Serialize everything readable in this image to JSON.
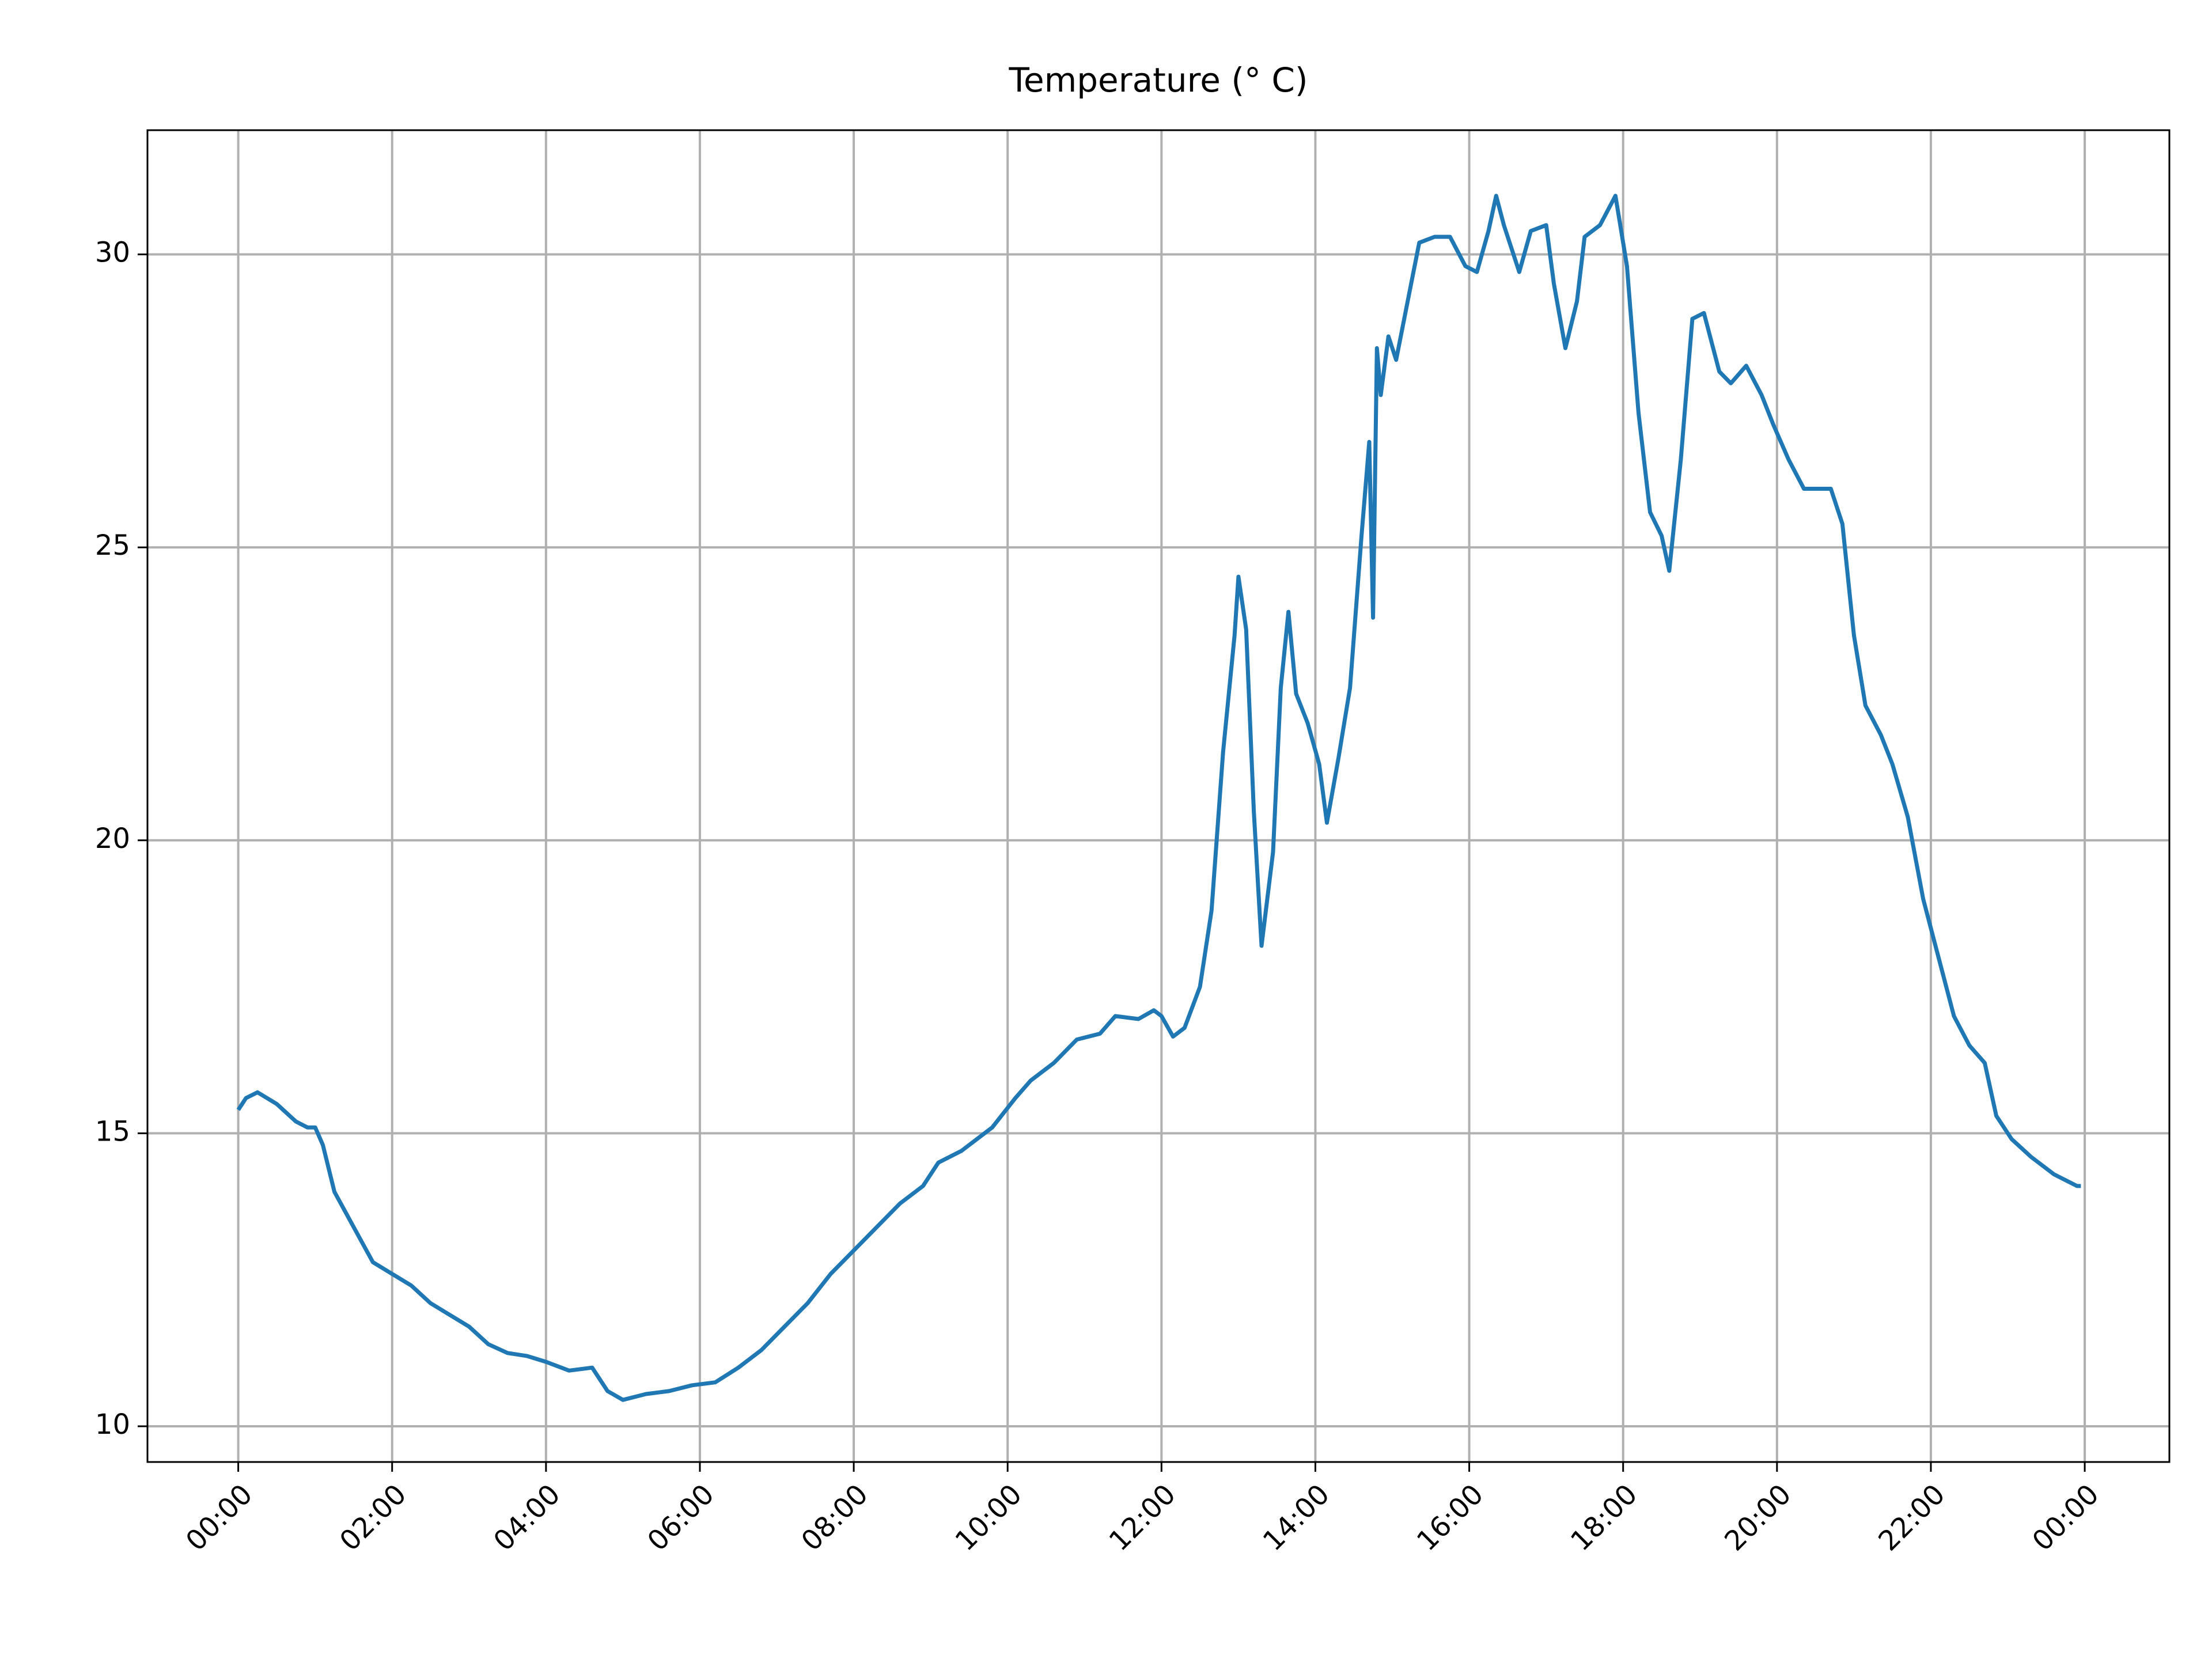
{
  "chart_data": {
    "type": "line",
    "title": "Temperature (° C)",
    "x": [
      0.0,
      0.1,
      0.25,
      0.5,
      0.75,
      0.9,
      1.0,
      1.1,
      1.25,
      1.5,
      1.75,
      2.0,
      2.25,
      2.5,
      2.75,
      3.0,
      3.25,
      3.5,
      3.75,
      4.0,
      4.3,
      4.6,
      4.8,
      5.0,
      5.3,
      5.6,
      5.9,
      6.2,
      6.5,
      6.8,
      7.1,
      7.4,
      7.7,
      8.0,
      8.3,
      8.6,
      8.9,
      9.1,
      9.4,
      9.8,
      10.1,
      10.3,
      10.6,
      10.9,
      11.2,
      11.4,
      11.7,
      11.9,
      12.0,
      12.15,
      12.3,
      12.5,
      12.65,
      12.8,
      12.95,
      13.0,
      13.1,
      13.2,
      13.3,
      13.45,
      13.55,
      13.65,
      13.75,
      13.9,
      14.05,
      14.15,
      14.3,
      14.45,
      14.6,
      14.7,
      14.75,
      14.8,
      14.85,
      14.95,
      15.05,
      15.2,
      15.35,
      15.55,
      15.75,
      15.95,
      16.1,
      16.25,
      16.35,
      16.45,
      16.65,
      16.8,
      17.0,
      17.1,
      17.25,
      17.4,
      17.5,
      17.7,
      17.9,
      18.05,
      18.2,
      18.35,
      18.5,
      18.6,
      18.75,
      18.9,
      19.05,
      19.25,
      19.4,
      19.6,
      19.8,
      19.95,
      20.15,
      20.35,
      20.55,
      20.7,
      20.85,
      21.0,
      21.15,
      21.35,
      21.5,
      21.7,
      21.9,
      22.1,
      22.3,
      22.5,
      22.7,
      22.85,
      23.05,
      23.3,
      23.6,
      23.9,
      23.95
    ],
    "values": [
      15.4,
      15.6,
      15.7,
      15.5,
      15.2,
      15.1,
      15.1,
      14.8,
      14.0,
      13.4,
      12.8,
      12.6,
      12.4,
      12.1,
      11.9,
      11.7,
      11.4,
      11.25,
      11.2,
      11.1,
      10.95,
      11.0,
      10.6,
      10.45,
      10.55,
      10.6,
      10.7,
      10.75,
      11.0,
      11.3,
      11.7,
      12.1,
      12.6,
      13.0,
      13.4,
      13.8,
      14.1,
      14.5,
      14.7,
      15.1,
      15.6,
      15.9,
      16.2,
      16.6,
      16.7,
      17.0,
      16.95,
      17.1,
      17.0,
      16.65,
      16.8,
      17.5,
      18.8,
      21.5,
      23.5,
      24.5,
      23.6,
      20.5,
      18.2,
      19.8,
      22.6,
      23.9,
      22.5,
      22.0,
      21.3,
      20.3,
      21.4,
      22.6,
      25.2,
      26.8,
      23.8,
      28.4,
      27.6,
      28.6,
      28.2,
      29.2,
      30.2,
      30.3,
      30.3,
      29.8,
      29.7,
      30.4,
      31.0,
      30.5,
      29.7,
      30.4,
      30.5,
      29.5,
      28.4,
      29.2,
      30.3,
      30.5,
      31.0,
      29.8,
      27.3,
      25.6,
      25.2,
      24.6,
      26.5,
      28.9,
      29.0,
      28.0,
      27.8,
      28.1,
      27.6,
      27.1,
      26.5,
      26.0,
      26.0,
      26.0,
      25.4,
      23.5,
      22.3,
      21.8,
      21.3,
      20.4,
      19.0,
      18.0,
      17.0,
      16.5,
      16.2,
      15.3,
      14.9,
      14.6,
      14.3,
      14.1,
      14.1
    ],
    "color": "#1f77b4",
    "xlim": [
      -1.18,
      25.1
    ],
    "ylim": [
      9.39,
      32.12
    ],
    "xticks": [
      {
        "value": 0,
        "label": "00:00"
      },
      {
        "value": 2,
        "label": "02:00"
      },
      {
        "value": 4,
        "label": "04:00"
      },
      {
        "value": 6,
        "label": "06:00"
      },
      {
        "value": 8,
        "label": "08:00"
      },
      {
        "value": 10,
        "label": "10:00"
      },
      {
        "value": 12,
        "label": "12:00"
      },
      {
        "value": 14,
        "label": "14:00"
      },
      {
        "value": 16,
        "label": "16:00"
      },
      {
        "value": 18,
        "label": "18:00"
      },
      {
        "value": 20,
        "label": "20:00"
      },
      {
        "value": 22,
        "label": "22:00"
      },
      {
        "value": 24,
        "label": "00:00"
      }
    ],
    "yticks": [
      10,
      15,
      20,
      25,
      30
    ],
    "grid": true
  }
}
